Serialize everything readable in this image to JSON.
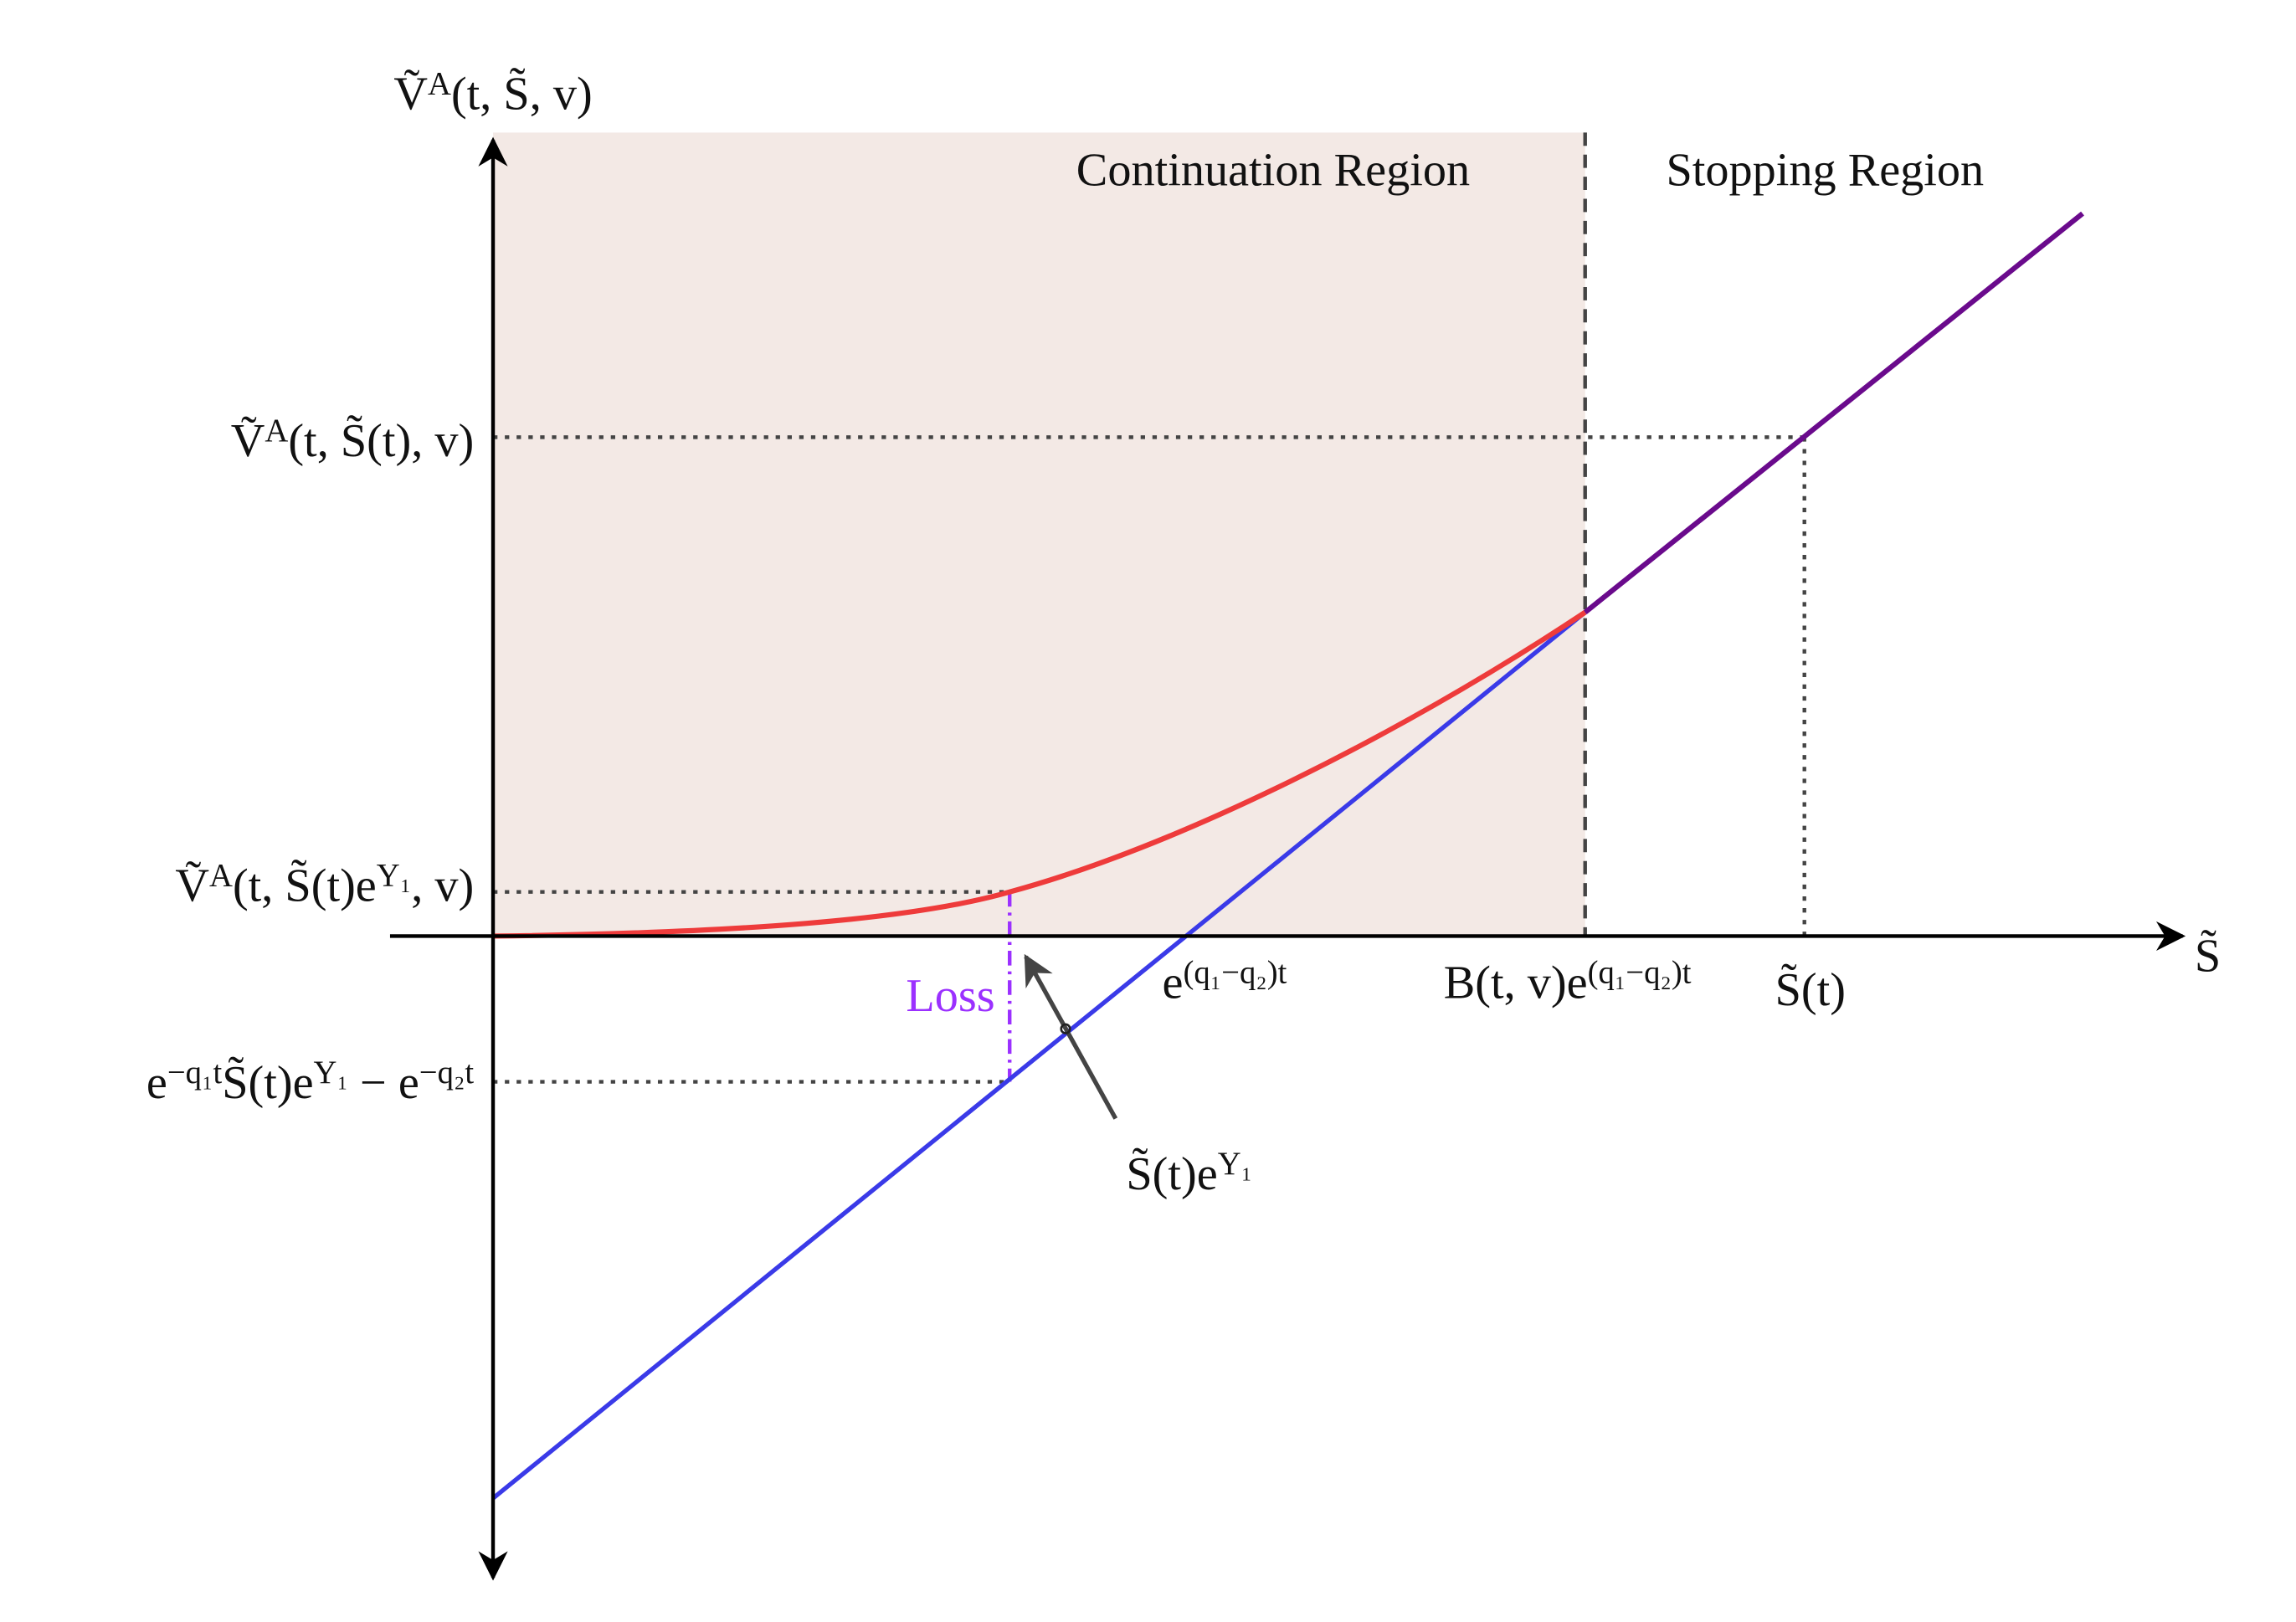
{
  "axes": {
    "y_label": [
      {
        "text": "Ṽ"
      },
      {
        "text": "A",
        "pos": "sup"
      },
      {
        "text": "(t, S̃, v)"
      }
    ],
    "x_label": [
      {
        "text": "S̃"
      }
    ]
  },
  "regions": {
    "continuation": "Continuation Region",
    "stopping": "Stopping Region"
  },
  "y_labels": [
    [
      {
        "text": "Ṽ"
      },
      {
        "text": "A",
        "pos": "sup"
      },
      {
        "text": "(t, S̃(t), v)"
      }
    ],
    [
      {
        "text": "Ṽ"
      },
      {
        "text": "A",
        "pos": "sup"
      },
      {
        "text": "(t, S̃(t)e"
      },
      {
        "text": "Y₁",
        "pos": "sup"
      },
      {
        "text": ", v)"
      }
    ],
    [
      {
        "text": "e"
      },
      {
        "text": "−q₁t",
        "pos": "sup"
      },
      {
        "text": "S̃(t)e"
      },
      {
        "text": "Y₁",
        "pos": "sup"
      },
      {
        "text": " − e"
      },
      {
        "text": "−q₂t",
        "pos": "sup"
      }
    ]
  ],
  "x_labels": [
    [
      {
        "text": "e"
      },
      {
        "text": "(q₁−q₂)t",
        "pos": "sup"
      }
    ],
    [
      {
        "text": "B(t, v)e"
      },
      {
        "text": "(q₁−q₂)t",
        "pos": "sup"
      }
    ],
    [
      {
        "text": "S̃(t)"
      }
    ]
  ],
  "loss": "Loss",
  "arrow_label": [
    {
      "text": "S̃(t)e"
    },
    {
      "text": "Y₁",
      "pos": "sup"
    }
  ]
}
